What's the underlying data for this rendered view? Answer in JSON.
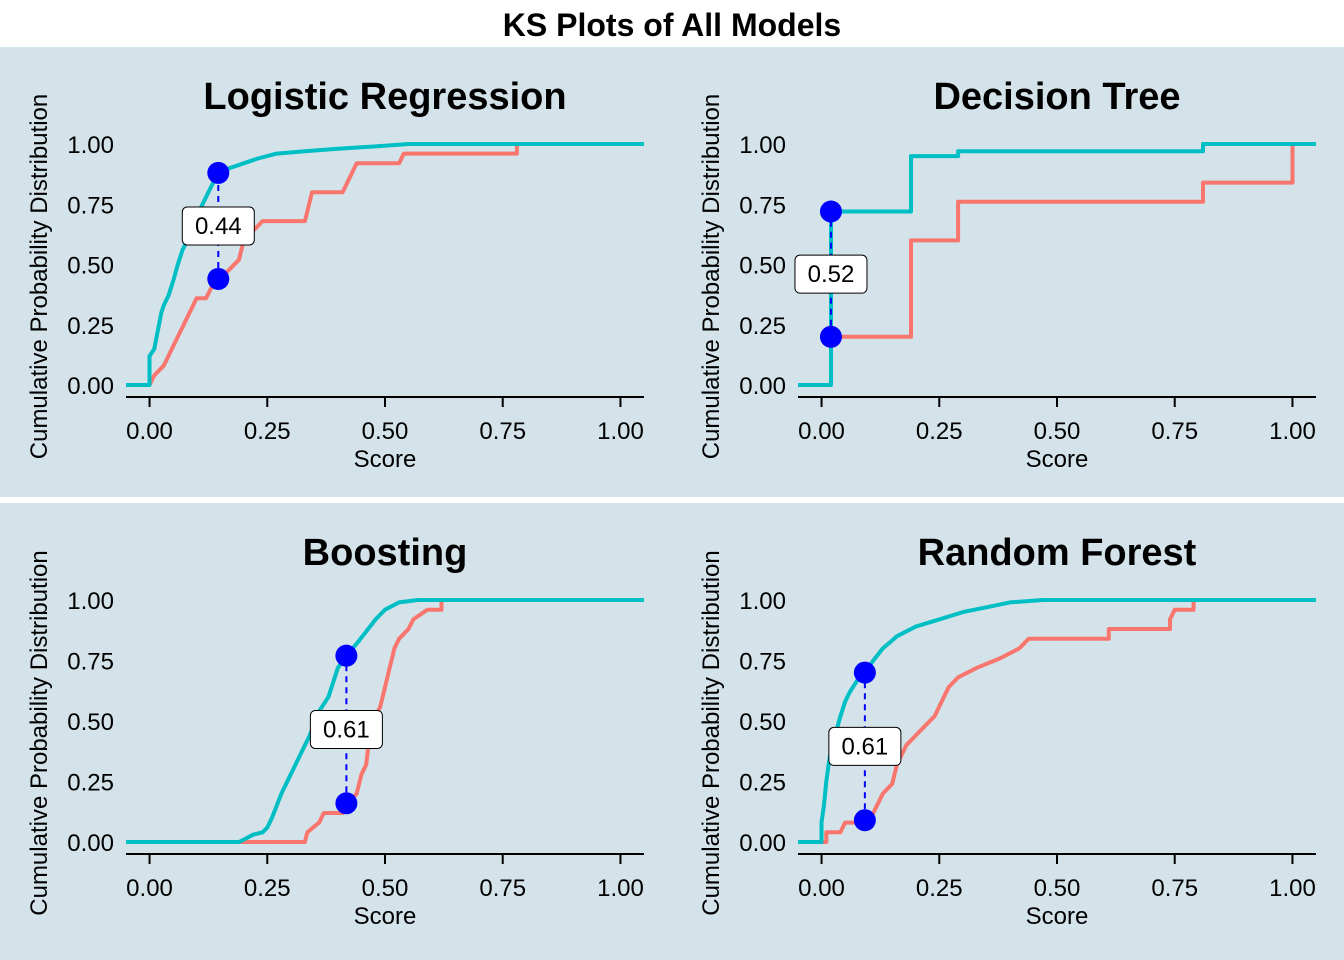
{
  "title": "KS Plots of All Models",
  "colors": {
    "background": "#d4e2ea",
    "series_1": "#f8766d",
    "series_2": "#00bfc4",
    "marker": "#0000ff"
  },
  "chart_data": [
    {
      "type": "line",
      "title": "Logistic Regression",
      "xlabel": "Score",
      "ylabel": "Cumulative Probability Distribution",
      "xlim": [
        -0.05,
        1.05
      ],
      "ylim": [
        0,
        1
      ],
      "xticks": [
        "0.00",
        "0.25",
        "0.50",
        "0.75",
        "1.00"
      ],
      "yticks": [
        "0.00",
        "0.25",
        "0.50",
        "0.75",
        "1.00"
      ],
      "ks": {
        "x": 0.146,
        "y_low": 0.44,
        "y_high": 0.88,
        "label": "0.44"
      },
      "series": [
        {
          "color": "#f8766d",
          "values": [
            [
              0,
              0
            ],
            [
              0.01,
              0.04
            ],
            [
              0.03,
              0.08
            ],
            [
              0.04,
              0.12
            ],
            [
              0.05,
              0.16
            ],
            [
              0.06,
              0.2
            ],
            [
              0.07,
              0.24
            ],
            [
              0.08,
              0.28
            ],
            [
              0.09,
              0.32
            ],
            [
              0.1,
              0.36
            ],
            [
              0.12,
              0.36
            ],
            [
              0.13,
              0.4
            ],
            [
              0.15,
              0.44
            ],
            [
              0.17,
              0.48
            ],
            [
              0.19,
              0.52
            ],
            [
              0.2,
              0.6
            ],
            [
              0.22,
              0.64
            ],
            [
              0.24,
              0.68
            ],
            [
              0.33,
              0.68
            ],
            [
              0.34,
              0.76
            ],
            [
              0.345,
              0.8
            ],
            [
              0.41,
              0.8
            ],
            [
              0.42,
              0.84
            ],
            [
              0.43,
              0.88
            ],
            [
              0.44,
              0.92
            ],
            [
              0.53,
              0.92
            ],
            [
              0.54,
              0.96
            ],
            [
              0.78,
              0.96
            ],
            [
              0.78,
              1.0
            ],
            [
              1.05,
              1.0
            ]
          ]
        },
        {
          "color": "#00bfc4",
          "values": [
            [
              -0.05,
              0
            ],
            [
              0,
              0
            ],
            [
              0,
              0.12
            ],
            [
              0.01,
              0.15
            ],
            [
              0.015,
              0.2
            ],
            [
              0.02,
              0.25
            ],
            [
              0.025,
              0.3
            ],
            [
              0.03,
              0.33
            ],
            [
              0.04,
              0.37
            ],
            [
              0.05,
              0.43
            ],
            [
              0.06,
              0.5
            ],
            [
              0.07,
              0.56
            ],
            [
              0.08,
              0.6
            ],
            [
              0.09,
              0.65
            ],
            [
              0.1,
              0.7
            ],
            [
              0.11,
              0.74
            ],
            [
              0.12,
              0.78
            ],
            [
              0.13,
              0.82
            ],
            [
              0.146,
              0.88
            ],
            [
              0.17,
              0.9
            ],
            [
              0.2,
              0.92
            ],
            [
              0.23,
              0.94
            ],
            [
              0.27,
              0.96
            ],
            [
              0.33,
              0.97
            ],
            [
              0.4,
              0.98
            ],
            [
              0.48,
              0.99
            ],
            [
              0.55,
              1.0
            ],
            [
              1.05,
              1.0
            ]
          ]
        }
      ]
    },
    {
      "type": "line",
      "title": "Decision Tree",
      "xlabel": "Score",
      "ylabel": "Cumulative Probability Distribution",
      "xlim": [
        -0.05,
        1.05
      ],
      "ylim": [
        0,
        1
      ],
      "xticks": [
        "0.00",
        "0.25",
        "0.50",
        "0.75",
        "1.00"
      ],
      "yticks": [
        "0.00",
        "0.25",
        "0.50",
        "0.75",
        "1.00"
      ],
      "ks": {
        "x": 0.02,
        "y_low": 0.2,
        "y_high": 0.72,
        "label": "0.52"
      },
      "series": [
        {
          "color": "#f8766d",
          "values": [
            [
              0.02,
              0.2
            ],
            [
              0.19,
              0.2
            ],
            [
              0.19,
              0.6
            ],
            [
              0.29,
              0.6
            ],
            [
              0.29,
              0.76
            ],
            [
              0.81,
              0.76
            ],
            [
              0.81,
              0.84
            ],
            [
              1.0,
              0.84
            ],
            [
              1.0,
              1.0
            ]
          ]
        },
        {
          "color": "#00bfc4",
          "values": [
            [
              -0.05,
              0
            ],
            [
              0.02,
              0
            ],
            [
              0.02,
              0.72
            ],
            [
              0.19,
              0.72
            ],
            [
              0.19,
              0.95
            ],
            [
              0.29,
              0.95
            ],
            [
              0.29,
              0.97
            ],
            [
              0.81,
              0.97
            ],
            [
              0.81,
              1.0
            ],
            [
              1.05,
              1.0
            ]
          ]
        }
      ]
    },
    {
      "type": "line",
      "title": "Boosting",
      "xlabel": "Score",
      "ylabel": "Cumulative Probability Distribution",
      "xlim": [
        -0.05,
        1.05
      ],
      "ylim": [
        0,
        1
      ],
      "xticks": [
        "0.00",
        "0.25",
        "0.50",
        "0.75",
        "1.00"
      ],
      "yticks": [
        "0.00",
        "0.25",
        "0.50",
        "0.75",
        "1.00"
      ],
      "ks": {
        "x": 0.418,
        "y_low": 0.16,
        "y_high": 0.77,
        "label": "0.61"
      },
      "series": [
        {
          "color": "#f8766d",
          "values": [
            [
              0,
              0
            ],
            [
              0.33,
              0
            ],
            [
              0.335,
              0.04
            ],
            [
              0.36,
              0.08
            ],
            [
              0.37,
              0.12
            ],
            [
              0.41,
              0.12
            ],
            [
              0.42,
              0.16
            ],
            [
              0.44,
              0.2
            ],
            [
              0.445,
              0.24
            ],
            [
              0.45,
              0.28
            ],
            [
              0.46,
              0.32
            ],
            [
              0.465,
              0.4
            ],
            [
              0.47,
              0.44
            ],
            [
              0.48,
              0.52
            ],
            [
              0.49,
              0.56
            ],
            [
              0.5,
              0.64
            ],
            [
              0.51,
              0.72
            ],
            [
              0.52,
              0.8
            ],
            [
              0.53,
              0.84
            ],
            [
              0.55,
              0.88
            ],
            [
              0.56,
              0.92
            ],
            [
              0.59,
              0.96
            ],
            [
              0.62,
              0.96
            ],
            [
              0.62,
              1.0
            ],
            [
              1.05,
              1.0
            ]
          ]
        },
        {
          "color": "#00bfc4",
          "values": [
            [
              -0.05,
              0
            ],
            [
              0.19,
              0
            ],
            [
              0.2,
              0.01
            ],
            [
              0.22,
              0.03
            ],
            [
              0.24,
              0.04
            ],
            [
              0.25,
              0.06
            ],
            [
              0.26,
              0.1
            ],
            [
              0.27,
              0.15
            ],
            [
              0.28,
              0.2
            ],
            [
              0.3,
              0.28
            ],
            [
              0.32,
              0.36
            ],
            [
              0.34,
              0.44
            ],
            [
              0.36,
              0.54
            ],
            [
              0.38,
              0.6
            ],
            [
              0.39,
              0.66
            ],
            [
              0.4,
              0.72
            ],
            [
              0.418,
              0.77
            ],
            [
              0.44,
              0.82
            ],
            [
              0.46,
              0.87
            ],
            [
              0.48,
              0.92
            ],
            [
              0.5,
              0.96
            ],
            [
              0.53,
              0.99
            ],
            [
              0.57,
              1.0
            ],
            [
              1.05,
              1.0
            ]
          ]
        }
      ]
    },
    {
      "type": "line",
      "title": "Random Forest",
      "xlabel": "Score",
      "ylabel": "Cumulative Probability Distribution",
      "xlim": [
        -0.05,
        1.05
      ],
      "ylim": [
        0,
        1
      ],
      "xticks": [
        "0.00",
        "0.25",
        "0.50",
        "0.75",
        "1.00"
      ],
      "yticks": [
        "0.00",
        "0.25",
        "0.50",
        "0.75",
        "1.00"
      ],
      "ks": {
        "x": 0.092,
        "y_low": 0.09,
        "y_high": 0.7,
        "label": "0.61"
      },
      "series": [
        {
          "color": "#f8766d",
          "values": [
            [
              0,
              0
            ],
            [
              0.01,
              0
            ],
            [
              0.01,
              0.04
            ],
            [
              0.04,
              0.04
            ],
            [
              0.05,
              0.08
            ],
            [
              0.1,
              0.08
            ],
            [
              0.11,
              0.12
            ],
            [
              0.12,
              0.16
            ],
            [
              0.13,
              0.2
            ],
            [
              0.15,
              0.24
            ],
            [
              0.16,
              0.32
            ],
            [
              0.18,
              0.4
            ],
            [
              0.2,
              0.44
            ],
            [
              0.22,
              0.48
            ],
            [
              0.24,
              0.52
            ],
            [
              0.25,
              0.56
            ],
            [
              0.26,
              0.6
            ],
            [
              0.27,
              0.64
            ],
            [
              0.29,
              0.68
            ],
            [
              0.33,
              0.72
            ],
            [
              0.38,
              0.76
            ],
            [
              0.42,
              0.8
            ],
            [
              0.44,
              0.84
            ],
            [
              0.61,
              0.84
            ],
            [
              0.61,
              0.88
            ],
            [
              0.74,
              0.88
            ],
            [
              0.74,
              0.92
            ],
            [
              0.75,
              0.96
            ],
            [
              0.79,
              0.96
            ],
            [
              0.79,
              1.0
            ]
          ]
        },
        {
          "color": "#00bfc4",
          "values": [
            [
              -0.05,
              0
            ],
            [
              0,
              0
            ],
            [
              0,
              0.08
            ],
            [
              0.005,
              0.15
            ],
            [
              0.01,
              0.25
            ],
            [
              0.015,
              0.32
            ],
            [
              0.02,
              0.38
            ],
            [
              0.03,
              0.45
            ],
            [
              0.04,
              0.52
            ],
            [
              0.05,
              0.58
            ],
            [
              0.06,
              0.62
            ],
            [
              0.07,
              0.65
            ],
            [
              0.08,
              0.68
            ],
            [
              0.092,
              0.7
            ],
            [
              0.11,
              0.75
            ],
            [
              0.13,
              0.8
            ],
            [
              0.16,
              0.85
            ],
            [
              0.2,
              0.89
            ],
            [
              0.25,
              0.92
            ],
            [
              0.3,
              0.95
            ],
            [
              0.35,
              0.97
            ],
            [
              0.4,
              0.99
            ],
            [
              0.47,
              1.0
            ],
            [
              1.05,
              1.0
            ]
          ]
        }
      ]
    }
  ]
}
